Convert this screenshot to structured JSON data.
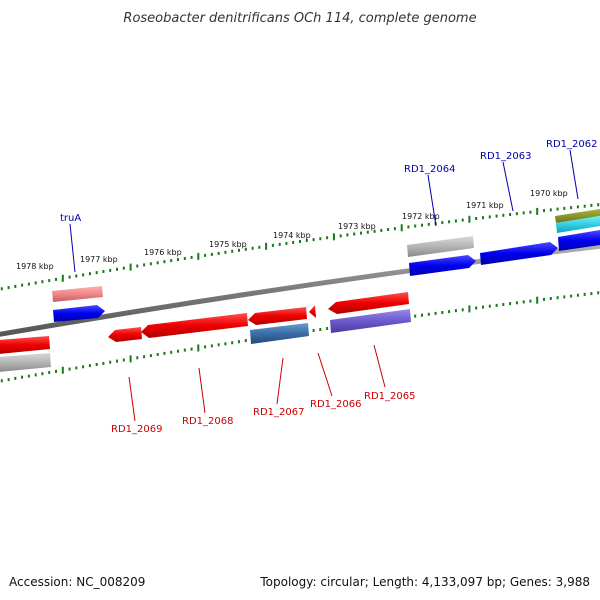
{
  "title": "Roseobacter denitrificans OCh 114, complete genome",
  "kbp_ticks": [
    "1978 kbp",
    "1977 kbp",
    "1976 kbp",
    "1975 kbp",
    "1974 kbp",
    "1973 kbp",
    "1972 kbp",
    "1971 kbp",
    "1970 kbp"
  ],
  "gene_labels_top": [
    {
      "label": "truA",
      "color": "#0000aa"
    },
    {
      "label": "RD1_2064",
      "color": "#0000aa"
    },
    {
      "label": "RD1_2063",
      "color": "#0000aa"
    },
    {
      "label": "RD1_2062",
      "color": "#0000aa"
    }
  ],
  "gene_labels_bottom": [
    {
      "label": "RD1_2069",
      "color": "#cc0000"
    },
    {
      "label": "RD1_2068",
      "color": "#cc0000"
    },
    {
      "label": "RD1_2067",
      "color": "#cc0000"
    },
    {
      "label": "RD1_2066",
      "color": "#cc0000"
    },
    {
      "label": "RD1_2065",
      "color": "#cc0000"
    }
  ],
  "footer": {
    "accession": "Accession: NC_008209",
    "topology": "Topology: circular; Length: 4,133,097 bp; Genes: 3,988"
  },
  "colors": {
    "backbone": "#7a7a7a",
    "tick": "#1a7a1a",
    "gene_red": "#ee0000",
    "gene_blue": "#0000ee",
    "gene_grey": "#b0b0b0",
    "gene_pink": "#f08888",
    "gene_steel": "#3a6ea8",
    "gene_purple": "#6a5acd",
    "gene_olive": "#7a8a20",
    "gene_cyan": "#00c8d8"
  }
}
